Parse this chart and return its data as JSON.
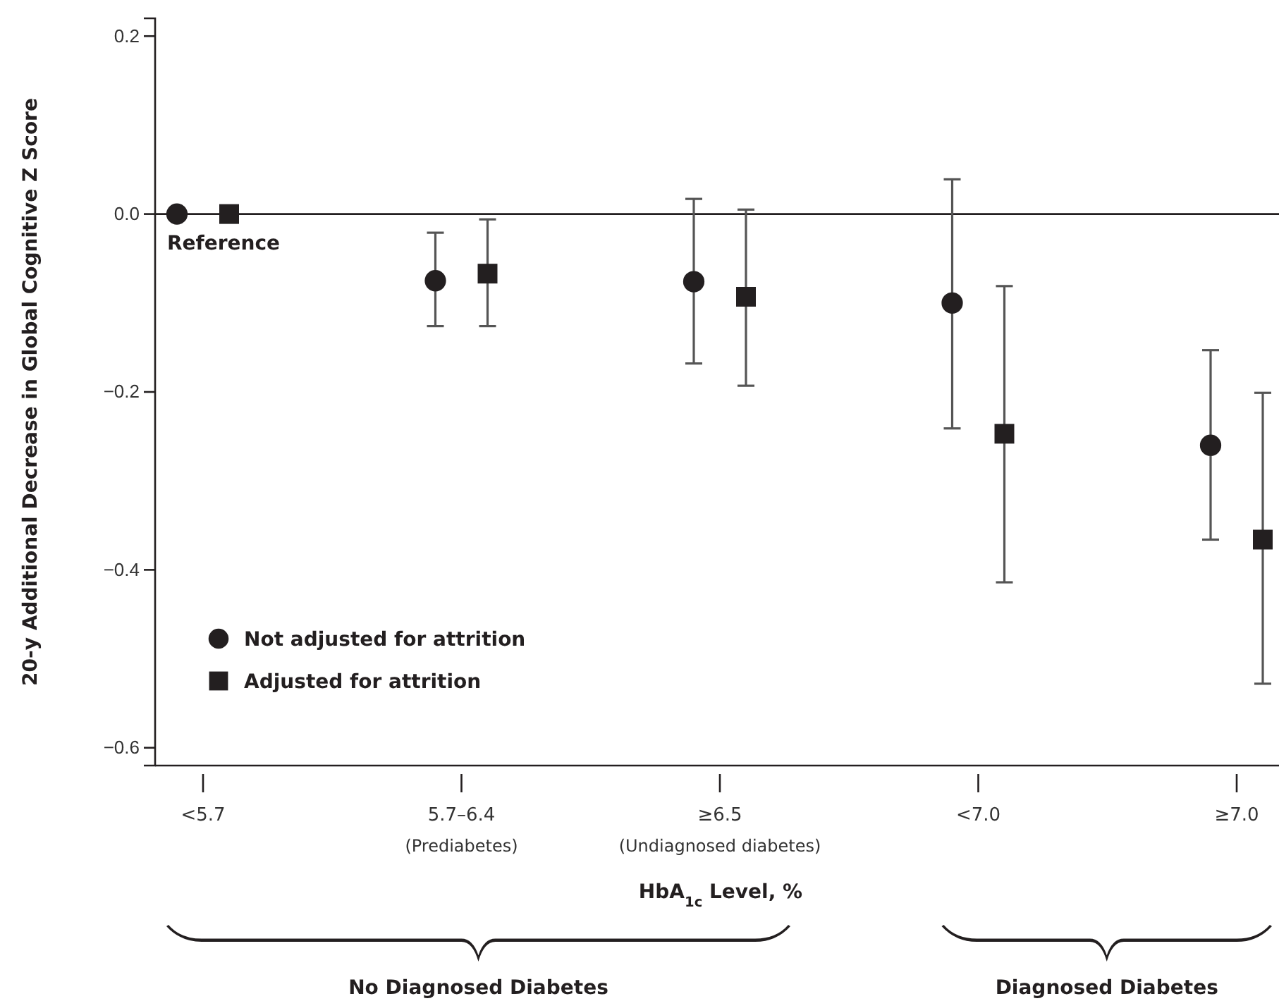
{
  "chart_data": {
    "type": "scatter",
    "categories": [
      "<5.7",
      "5.7–6.4\n(Prediabetes)",
      "≥6.5\n(Undiagnosed diabetes)",
      "<7.0",
      "≥7.0"
    ],
    "series": [
      {
        "name": "Not adjusted for attrition",
        "color": "#231f20",
        "marker": "circle",
        "values": [
          0,
          -0.075,
          -0.076,
          -0.1,
          -0.26
        ],
        "errors": [
          null,
          [
            -0.126,
            -0.021
          ],
          [
            -0.168,
            0.017
          ],
          [
            -0.241,
            0.039
          ],
          [
            -0.366,
            -0.153
          ]
        ]
      },
      {
        "name": "Adjusted for attrition",
        "color": "#231f20",
        "marker": "square",
        "values": [
          0,
          -0.067,
          -0.093,
          -0.247,
          -0.366
        ],
        "errors": [
          null,
          [
            -0.126,
            -0.006
          ],
          [
            -0.193,
            0.005
          ],
          [
            -0.414,
            -0.081
          ],
          [
            -0.528,
            -0.201
          ]
        ]
      }
    ],
    "xlabel": "HbA$_{1c}$ Level, %",
    "ylabel": "20-y Additional Decrease in Global Cognitive Z Score",
    "ylim": [
      -0.62,
      0.22
    ],
    "yticks": [
      {
        "value": 0.2,
        "label": "0.2"
      },
      {
        "value": 0,
        "label": "0.0"
      },
      {
        "value": -0.2,
        "label": "−0.2"
      },
      {
        "value": -0.4,
        "label": "−0.4"
      },
      {
        "value": -0.6,
        "label": "−0.6"
      }
    ],
    "ref_lines": [
      {
        "axis": "y",
        "value": 0,
        "color": "#231f20"
      }
    ],
    "annotations": [
      {
        "text": "Reference",
        "x": "<5.7",
        "y": 0
      },
      "No Diagnosed Diabetes",
      "Diagnosed Diabetes"
    ],
    "legend": "bottom left"
  }
}
